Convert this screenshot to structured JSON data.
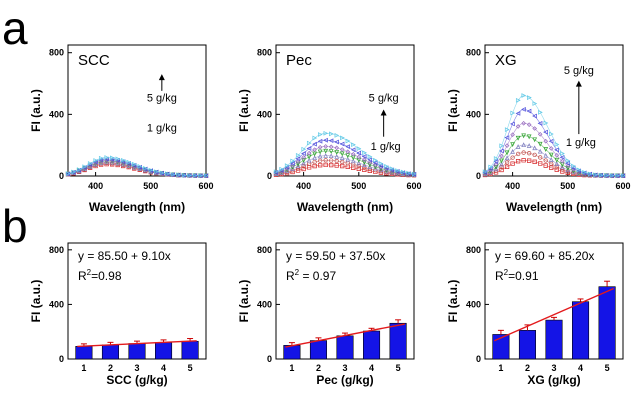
{
  "figure": {
    "labels": [
      "a",
      "b"
    ]
  },
  "colors": {
    "spectra": [
      "#d62728",
      "#c0504d",
      "#7f7fbf",
      "#2ca02c",
      "#9467bd",
      "#4b4bdb",
      "#5ec8e6"
    ],
    "bar": "#1414e6",
    "fit_line": "#e31a1c"
  },
  "chart_data": [
    {
      "panel": "a",
      "type": "line",
      "title": "SCC",
      "xlabel": "Wavelength (nm)",
      "ylabel": "FI (a.u.)",
      "xlim": [
        350,
        600
      ],
      "ylim": [
        0,
        850
      ],
      "xticks": [
        400,
        500,
        600
      ],
      "yticks": [
        0,
        400,
        800
      ],
      "annotations": {
        "high": "5 g/kg",
        "low": "1 g/kg"
      },
      "series": [
        {
          "peak": 420,
          "height": 75,
          "width": 45,
          "marker": "square"
        },
        {
          "peak": 420,
          "height": 82,
          "width": 45,
          "marker": "circle"
        },
        {
          "peak": 420,
          "height": 88,
          "width": 45,
          "marker": "triangle"
        },
        {
          "peak": 420,
          "height": 95,
          "width": 45,
          "marker": "triangle-down"
        },
        {
          "peak": 420,
          "height": 100,
          "width": 45,
          "marker": "diamond"
        },
        {
          "peak": 420,
          "height": 108,
          "width": 45,
          "marker": "triangle-left"
        },
        {
          "peak": 420,
          "height": 118,
          "width": 45,
          "marker": "triangle-right"
        }
      ]
    },
    {
      "panel": "a",
      "type": "line",
      "title": "Pec",
      "xlabel": "Wavelength (nm)",
      "ylabel": "FI (a.u.)",
      "xlim": [
        350,
        600
      ],
      "ylim": [
        0,
        850
      ],
      "xticks": [
        400,
        500,
        600
      ],
      "yticks": [
        0,
        400,
        800
      ],
      "annotations": {
        "high": "5 g/kg",
        "low": "1 g/kg"
      },
      "series": [
        {
          "peak": 440,
          "height": 70,
          "width": 55,
          "marker": "square"
        },
        {
          "peak": 440,
          "height": 100,
          "width": 55,
          "marker": "circle"
        },
        {
          "peak": 440,
          "height": 130,
          "width": 55,
          "marker": "triangle"
        },
        {
          "peak": 440,
          "height": 160,
          "width": 55,
          "marker": "triangle-down"
        },
        {
          "peak": 440,
          "height": 190,
          "width": 55,
          "marker": "diamond"
        },
        {
          "peak": 440,
          "height": 230,
          "width": 55,
          "marker": "triangle-left"
        },
        {
          "peak": 440,
          "height": 275,
          "width": 55,
          "marker": "triangle-right"
        }
      ]
    },
    {
      "panel": "a",
      "type": "line",
      "title": "XG",
      "xlabel": "Wavelength (nm)",
      "ylabel": "FI (a.u.)",
      "xlim": [
        350,
        600
      ],
      "ylim": [
        0,
        850
      ],
      "xticks": [
        400,
        500,
        600
      ],
      "yticks": [
        0,
        400,
        800
      ],
      "annotations": {
        "high": "5 g/kg",
        "low": "1 g/kg"
      },
      "series": [
        {
          "peak": 420,
          "height": 100,
          "width": 38,
          "marker": "square"
        },
        {
          "peak": 420,
          "height": 150,
          "width": 38,
          "marker": "circle"
        },
        {
          "peak": 420,
          "height": 200,
          "width": 38,
          "marker": "triangle"
        },
        {
          "peak": 420,
          "height": 260,
          "width": 38,
          "marker": "triangle-down"
        },
        {
          "peak": 420,
          "height": 340,
          "width": 38,
          "marker": "diamond"
        },
        {
          "peak": 420,
          "height": 430,
          "width": 38,
          "marker": "triangle-left"
        },
        {
          "peak": 420,
          "height": 520,
          "width": 38,
          "marker": "triangle-right"
        }
      ]
    },
    {
      "panel": "b",
      "type": "bar",
      "xlabel": "SCC (g/kg)",
      "ylabel": "FI (a.u.)",
      "categories": [
        "1",
        "2",
        "3",
        "4",
        "5"
      ],
      "values": [
        93,
        104,
        113,
        122,
        130
      ],
      "errors": [
        18,
        18,
        18,
        18,
        20
      ],
      "ylim": [
        0,
        850
      ],
      "yticks": [
        0,
        400,
        800
      ],
      "fit": {
        "intercept": 85.5,
        "slope": 9.1
      },
      "equation": "y = 85.50 + 9.10x",
      "r2_label": "R",
      "r2_sup": "2",
      "r2_value": "=0.98"
    },
    {
      "panel": "b",
      "type": "bar",
      "xlabel": "Pec (g/kg)",
      "ylabel": "FI (a.u.)",
      "categories": [
        "1",
        "2",
        "3",
        "4",
        "5"
      ],
      "values": [
        100,
        135,
        170,
        205,
        262
      ],
      "errors": [
        20,
        20,
        20,
        20,
        25
      ],
      "ylim": [
        0,
        850
      ],
      "yticks": [
        0,
        400,
        800
      ],
      "fit": {
        "intercept": 59.5,
        "slope": 37.5
      },
      "equation": "y = 59.50 + 37.50x",
      "r2_label": "R",
      "r2_sup": "2",
      "r2_value": " = 0.97"
    },
    {
      "panel": "b",
      "type": "bar",
      "xlabel": "XG (g/kg)",
      "ylabel": "FI (a.u.)",
      "categories": [
        "1",
        "2",
        "3",
        "4",
        "5"
      ],
      "values": [
        180,
        210,
        285,
        420,
        530
      ],
      "errors": [
        30,
        40,
        20,
        20,
        40
      ],
      "ylim": [
        0,
        850
      ],
      "yticks": [
        0,
        400,
        800
      ],
      "fit": {
        "intercept": 69.6,
        "slope": 85.2
      },
      "equation": "y = 69.60 + 85.20x",
      "r2_label": "R",
      "r2_sup": "2",
      "r2_value": "=0.91"
    }
  ]
}
